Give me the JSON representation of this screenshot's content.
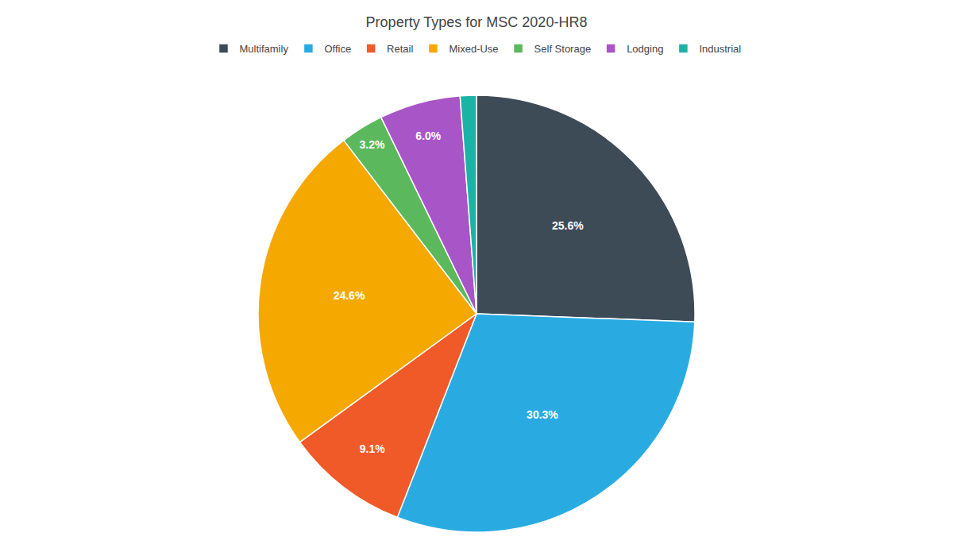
{
  "chart_data": {
    "type": "pie",
    "title": "Property Types for MSC 2020-HR8",
    "categories": [
      "Multifamily",
      "Office",
      "Retail",
      "Mixed-Use",
      "Self Storage",
      "Lodging",
      "Industrial"
    ],
    "values": [
      25.6,
      30.3,
      9.1,
      24.6,
      3.2,
      6.0,
      1.2
    ],
    "value_labels": [
      "25.6%",
      "30.3%",
      "9.1%",
      "24.6%",
      "3.2%",
      "6.0%",
      null
    ],
    "colors": [
      "#3d4b57",
      "#29abe2",
      "#f05a28",
      "#f5a800",
      "#5cb85c",
      "#a855c8",
      "#1ab3a6"
    ],
    "data_labels": true,
    "legend": "top"
  }
}
